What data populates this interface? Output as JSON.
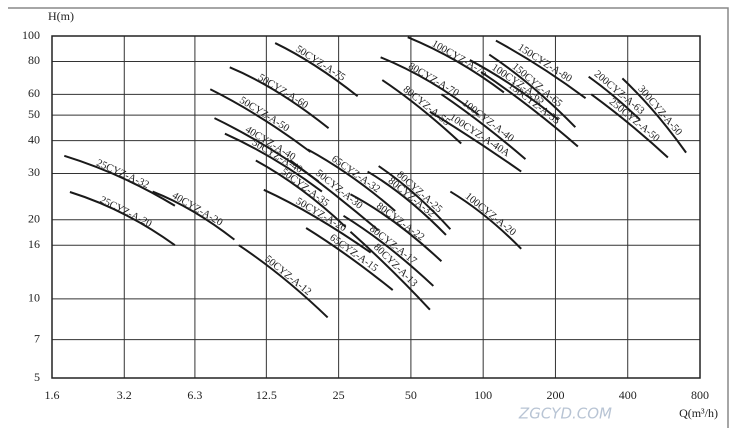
{
  "chart_data": {
    "type": "line",
    "y_label": "H(m)",
    "x_label": "Q(m³/h)",
    "watermark": "ZGCYD.COM",
    "xscale": "log",
    "yscale": "log",
    "grid": true,
    "color": "#1a1a1a",
    "xlim": [
      1.6,
      800
    ],
    "ylim": [
      5,
      100
    ],
    "xticks": [
      1.6,
      3.2,
      6.3,
      12.5,
      25,
      50,
      100,
      200,
      400,
      800
    ],
    "yticks": [
      5,
      7,
      10,
      16,
      20,
      30,
      40,
      50,
      60,
      80,
      100
    ],
    "series": [
      {
        "name": "25CYZ-A-32",
        "x": [
          1.8,
          3.1,
          5.2
        ],
        "values": [
          35,
          29,
          22.6
        ]
      },
      {
        "name": "25CYZ-A-20",
        "x": [
          1.9,
          3.2,
          5.2
        ],
        "values": [
          25.5,
          21,
          16
        ]
      },
      {
        "name": "40CYZ-A-20",
        "x": [
          4.2,
          6.2,
          9.2
        ],
        "values": [
          25.6,
          21.5,
          16.8
        ]
      },
      {
        "name": "50CYZ-A-75",
        "x": [
          13.6,
          20,
          30
        ],
        "values": [
          94,
          77,
          59
        ]
      },
      {
        "name": "50CYZ-A-60",
        "x": [
          8.8,
          14,
          22.7
        ],
        "values": [
          76,
          61,
          44.6
        ]
      },
      {
        "name": "50CYZ-A-50",
        "x": [
          7.3,
          11.8,
          19.1
        ],
        "values": [
          62.7,
          49,
          36.2
        ]
      },
      {
        "name": "40CYZ-A-40",
        "x": [
          7.6,
          12.5,
          20.6
        ],
        "values": [
          48.7,
          38,
          28
        ]
      },
      {
        "name": "50CYZ-A-40",
        "x": [
          8.4,
          13.4,
          21.3
        ],
        "values": [
          42.5,
          34,
          25.6
        ]
      },
      {
        "name": "50CYZ-A-35",
        "x": [
          11.3,
          17.5,
          26.7
        ],
        "values": [
          33.6,
          26,
          18.8
        ]
      },
      {
        "name": "50CYZ-A-20",
        "x": [
          12.2,
          20,
          34
        ],
        "values": [
          26,
          20.5,
          15
        ]
      },
      {
        "name": "50CYZ-A-12",
        "x": [
          9.6,
          14.7,
          22.5
        ],
        "values": [
          16,
          12,
          8.5
        ]
      },
      {
        "name": "65CYZ-A-32",
        "x": [
          18.6,
          28.5,
          43
        ],
        "values": [
          37,
          29,
          21.6
        ]
      },
      {
        "name": "50CYZ-A-30",
        "x": [
          15.7,
          24,
          36.7
        ],
        "values": [
          33.7,
          25,
          18.2
        ]
      },
      {
        "name": "65CYZ-A-15",
        "x": [
          18.3,
          27.5,
          42
        ],
        "values": [
          18.6,
          14.5,
          10.8
        ]
      },
      {
        "name": "80CYZ-A-25",
        "x": [
          36.7,
          52,
          73
        ],
        "values": [
          32,
          25,
          18.4
        ]
      },
      {
        "name": "80CYZ-A-32",
        "x": [
          33,
          48,
          70
        ],
        "values": [
          30.5,
          24,
          17.5
        ]
      },
      {
        "name": "80CYZ-A-22",
        "x": [
          28,
          43,
          67
        ],
        "values": [
          25,
          19.5,
          13.9
        ]
      },
      {
        "name": "80CYZ-A-17",
        "x": [
          26.2,
          40,
          62
        ],
        "values": [
          20.7,
          15.8,
          11.2
        ]
      },
      {
        "name": "80CYZ-A-13",
        "x": [
          28,
          41,
          60
        ],
        "values": [
          18,
          13,
          9.1
        ]
      },
      {
        "name": "100CYZ-A-20",
        "x": [
          73,
          103,
          144
        ],
        "values": [
          25.6,
          20.5,
          15.5
        ]
      },
      {
        "name": "80CYZ-A-55",
        "x": [
          38,
          55,
          81
        ],
        "values": [
          68,
          53,
          39
        ]
      },
      {
        "name": "80CYZ-A-70",
        "x": [
          37.4,
          60,
          96
        ],
        "values": [
          83,
          67,
          50
        ]
      },
      {
        "name": "100CYZ-A-75",
        "x": [
          48.5,
          78,
          122
        ],
        "values": [
          99,
          80,
          61
        ]
      },
      {
        "name": "100CYZ-A-65",
        "x": [
          88,
          135,
          206
        ],
        "values": [
          81,
          64,
          48
        ]
      },
      {
        "name": "100CYZ-A-40",
        "x": [
          67,
          100,
          150
        ],
        "values": [
          60,
          46,
          34
        ]
      },
      {
        "name": "100CYZ-A-40A",
        "x": [
          60,
          93,
          144
        ],
        "values": [
          51.5,
          40,
          30.5
        ]
      },
      {
        "name": "150CYZ-A-80",
        "x": [
          113,
          174,
          267
        ],
        "values": [
          96,
          76,
          58
        ]
      },
      {
        "name": "150CYZ-A-65",
        "x": [
          106,
          160,
          242
        ],
        "values": [
          85,
          64,
          45
        ]
      },
      {
        "name": "150CYZ-A-55",
        "x": [
          98,
          155,
          248
        ],
        "values": [
          73,
          54,
          38
        ]
      },
      {
        "name": "200CYZ-A-63",
        "x": [
          275,
          350,
          450
        ],
        "values": [
          70,
          59,
          48
        ]
      },
      {
        "name": "250CYZ-A-50",
        "x": [
          282,
          410,
          588
        ],
        "values": [
          60,
          46,
          34.5
        ]
      },
      {
        "name": "300CYZ-A-50",
        "x": [
          380,
          520,
          700
        ],
        "values": [
          69,
          51,
          36
        ]
      }
    ]
  }
}
